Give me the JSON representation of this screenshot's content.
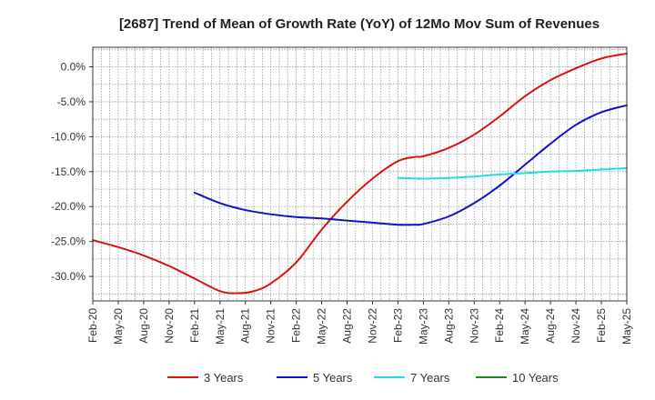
{
  "chart_data": {
    "type": "line",
    "title": "[2687]  Trend of Mean of Growth Rate (YoY) of 12Mo Mov Sum of Revenues",
    "xlabel": "",
    "ylabel": "",
    "x_ticks": [
      "Feb-20",
      "May-20",
      "Aug-20",
      "Nov-20",
      "Feb-21",
      "May-21",
      "Aug-21",
      "Nov-21",
      "Feb-22",
      "May-22",
      "Aug-22",
      "Nov-22",
      "Feb-23",
      "May-23",
      "Aug-23",
      "Nov-23",
      "Feb-24",
      "May-24",
      "Aug-24",
      "Nov-24",
      "Feb-25",
      "May-25"
    ],
    "y_ticks": [
      0.0,
      -5.0,
      -10.0,
      -15.0,
      -20.0,
      -25.0,
      -30.0
    ],
    "y_tick_labels": [
      "0.0%",
      "-5.0%",
      "-10.0%",
      "-15.0%",
      "-20.0%",
      "-25.0%",
      "-30.0%"
    ],
    "ylim": [
      -33.5,
      2.8
    ],
    "xlim": [
      0,
      63
    ],
    "x_unit": "months since Feb-20",
    "grid": true,
    "legend_position": "bottom",
    "series": [
      {
        "name": "3 Years",
        "color": "#dd1111",
        "points": [
          [
            0,
            -24.8
          ],
          [
            3,
            -25.8
          ],
          [
            6,
            -27.0
          ],
          [
            9,
            -28.5
          ],
          [
            12,
            -30.3
          ],
          [
            15,
            -32.1
          ],
          [
            17,
            -32.4
          ],
          [
            19,
            -32.1
          ],
          [
            21,
            -31.0
          ],
          [
            24,
            -28.0
          ],
          [
            27,
            -23.3
          ],
          [
            30,
            -19.3
          ],
          [
            33,
            -16.0
          ],
          [
            36,
            -13.5
          ],
          [
            38,
            -12.9
          ],
          [
            39,
            -12.8
          ],
          [
            42,
            -11.6
          ],
          [
            45,
            -9.7
          ],
          [
            48,
            -7.1
          ],
          [
            51,
            -4.2
          ],
          [
            54,
            -1.9
          ],
          [
            57,
            -0.2
          ],
          [
            60,
            1.2
          ],
          [
            63,
            1.9
          ]
        ]
      },
      {
        "name": "5 Years",
        "color": "#1111cc",
        "points": [
          [
            12,
            -18.0
          ],
          [
            15,
            -19.5
          ],
          [
            18,
            -20.5
          ],
          [
            21,
            -21.1
          ],
          [
            24,
            -21.5
          ],
          [
            27,
            -21.7
          ],
          [
            30,
            -22.0
          ],
          [
            33,
            -22.3
          ],
          [
            36,
            -22.6
          ],
          [
            38,
            -22.6
          ],
          [
            39,
            -22.5
          ],
          [
            42,
            -21.4
          ],
          [
            45,
            -19.5
          ],
          [
            48,
            -17.0
          ],
          [
            51,
            -14.0
          ],
          [
            54,
            -11.0
          ],
          [
            57,
            -8.3
          ],
          [
            60,
            -6.5
          ],
          [
            63,
            -5.5
          ]
        ]
      },
      {
        "name": "7 Years",
        "color": "#22dddd",
        "points": [
          [
            36,
            -15.9
          ],
          [
            39,
            -16.0
          ],
          [
            42,
            -15.9
          ],
          [
            45,
            -15.7
          ],
          [
            48,
            -15.4
          ],
          [
            51,
            -15.2
          ],
          [
            54,
            -15.0
          ],
          [
            57,
            -14.9
          ],
          [
            60,
            -14.7
          ],
          [
            63,
            -14.5
          ]
        ]
      },
      {
        "name": "10 Years",
        "color": "#228822",
        "points": []
      }
    ]
  }
}
